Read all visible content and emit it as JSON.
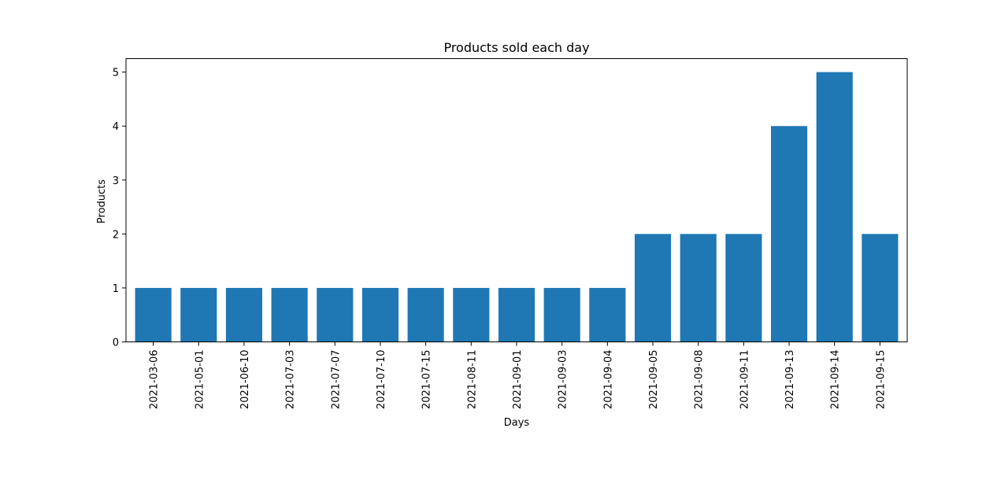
{
  "chart_data": {
    "type": "bar",
    "title": "Products sold each day",
    "xlabel": "Days",
    "ylabel": "Products",
    "categories": [
      "2021-03-06",
      "2021-05-01",
      "2021-06-10",
      "2021-07-03",
      "2021-07-07",
      "2021-07-10",
      "2021-07-15",
      "2021-08-11",
      "2021-09-01",
      "2021-09-03",
      "2021-09-04",
      "2021-09-05",
      "2021-09-08",
      "2021-09-11",
      "2021-09-13",
      "2021-09-14",
      "2021-09-15"
    ],
    "values": [
      1,
      1,
      1,
      1,
      1,
      1,
      1,
      1,
      1,
      1,
      1,
      2,
      2,
      2,
      4,
      5,
      2
    ],
    "yticks": [
      0,
      1,
      2,
      3,
      4,
      5
    ],
    "ylim": [
      0,
      5.25
    ],
    "grid": false,
    "bar_color": "#1f77b4"
  }
}
